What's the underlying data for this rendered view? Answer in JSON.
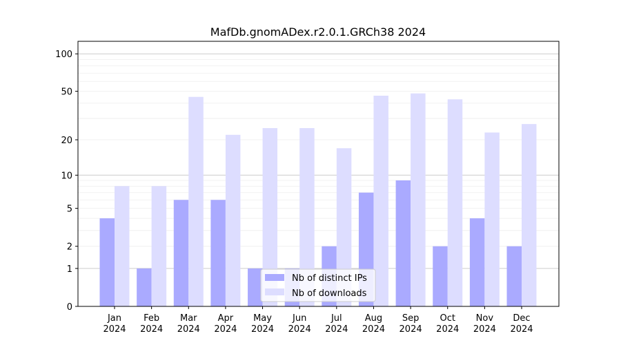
{
  "chart_data": {
    "type": "bar",
    "title": "MafDb.gnomADex.r2.0.1.GRCh38 2024",
    "xlabel": "",
    "ylabel": "",
    "yscale": "symlog",
    "ylim": [
      0,
      126
    ],
    "yticks": [
      0,
      1,
      2,
      5,
      10,
      20,
      50,
      100
    ],
    "grid": true,
    "legend_position": "bottom-center",
    "categories": [
      "Jan\n2024",
      "Feb\n2024",
      "Mar\n2024",
      "Apr\n2024",
      "May\n2024",
      "Jun\n2024",
      "Jul\n2024",
      "Aug\n2024",
      "Sep\n2024",
      "Oct\n2024",
      "Nov\n2024",
      "Dec\n2024"
    ],
    "series": [
      {
        "name": "Nb of distinct IPs",
        "color": "#aaaaff",
        "values": [
          4,
          1,
          6,
          6,
          1,
          1,
          2,
          7,
          9,
          2,
          4,
          2
        ]
      },
      {
        "name": "Nb of downloads",
        "color": "#ddddff",
        "values": [
          8,
          8,
          45,
          22,
          25,
          25,
          17,
          46,
          48,
          43,
          23,
          27
        ]
      }
    ]
  }
}
